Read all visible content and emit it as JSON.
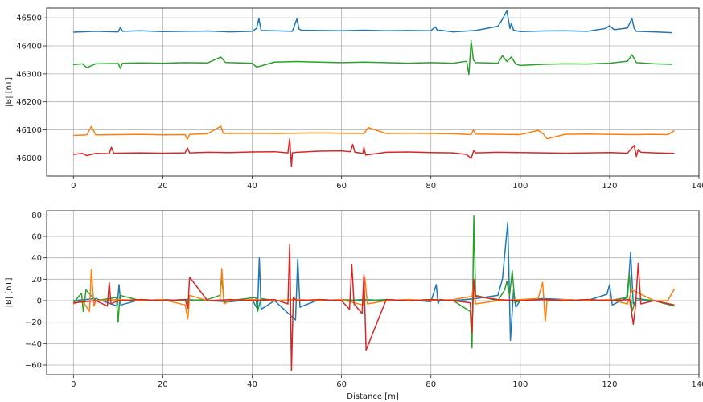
{
  "chart_data": [
    {
      "type": "line",
      "title": "",
      "xlabel": "",
      "ylabel": "|B| [nT]",
      "xlim": [
        -6,
        140
      ],
      "ylim": [
        45935,
        46535
      ],
      "xticks": [
        0,
        20,
        40,
        60,
        80,
        100,
        120,
        140
      ],
      "yticks": [
        46000,
        46100,
        46200,
        46300,
        46400,
        46500
      ],
      "xtick_labels": [
        "0",
        "20",
        "40",
        "60",
        "80",
        "100",
        "120",
        "140"
      ],
      "ytick_labels": [
        "46000",
        "46100",
        "46200",
        "46300",
        "46400",
        "46500"
      ],
      "grid": true,
      "series": [
        {
          "color": "#1f77b4",
          "base": 46450,
          "x": [
            0,
            5,
            10,
            10.5,
            11,
            15,
            20,
            25,
            30,
            35,
            40,
            41,
            41.5,
            42,
            45,
            49,
            50,
            50.5,
            51,
            55,
            60,
            65,
            70,
            75,
            80,
            81,
            81.5,
            82,
            85,
            90,
            95,
            96,
            97,
            97.7,
            98,
            98.5,
            100,
            105,
            110,
            115,
            119,
            120,
            121,
            124,
            125,
            125.5,
            126,
            130,
            134
          ],
          "y": [
            46449,
            46452,
            46450,
            46466,
            46452,
            46454,
            46451,
            46452,
            46453,
            46450,
            46452,
            46463,
            46498,
            46455,
            46454,
            46452,
            46496,
            46460,
            46456,
            46455,
            46454,
            46456,
            46454,
            46455,
            46454,
            46468,
            46454,
            46456,
            46450,
            46455,
            46470,
            46495,
            46525,
            46462,
            46480,
            46456,
            46451,
            46453,
            46454,
            46452,
            46462,
            46472,
            46458,
            46464,
            46498,
            46462,
            46452,
            46450,
            46447
          ]
        },
        {
          "color": "#2ca02c",
          "base": 46335,
          "x": [
            0,
            2,
            3,
            5,
            10,
            10.5,
            11,
            15,
            20,
            25,
            30,
            33,
            34,
            35,
            40,
            41,
            45,
            50,
            55,
            60,
            65,
            70,
            75,
            80,
            85,
            88,
            88.5,
            89,
            89.5,
            90,
            95,
            96,
            97,
            98,
            99,
            100,
            105,
            110,
            115,
            120,
            124,
            125,
            126,
            130,
            134
          ],
          "y": [
            46333,
            46336,
            46322,
            46336,
            46337,
            46320,
            46338,
            46339,
            46338,
            46340,
            46339,
            46360,
            46341,
            46340,
            46338,
            46324,
            46342,
            46344,
            46342,
            46340,
            46342,
            46340,
            46338,
            46340,
            46338,
            46345,
            46298,
            46418,
            46350,
            46340,
            46338,
            46365,
            46344,
            46360,
            46335,
            46330,
            46334,
            46336,
            46335,
            46338,
            46345,
            46368,
            46340,
            46336,
            46334
          ]
        },
        {
          "color": "#ff7f0e",
          "base": 46082,
          "x": [
            0,
            3,
            4,
            5,
            10,
            15,
            20,
            25,
            25.5,
            26,
            30,
            33,
            33.5,
            34,
            40,
            45,
            50,
            55,
            60,
            65,
            66,
            70,
            75,
            80,
            85,
            89,
            89.5,
            90,
            95,
            100,
            104,
            105,
            106,
            110,
            115,
            120,
            125,
            130,
            133,
            134.5
          ],
          "y": [
            46080,
            46082,
            46112,
            46082,
            46083,
            46084,
            46082,
            46083,
            46066,
            46084,
            46086,
            46113,
            46088,
            46087,
            46088,
            46087,
            46088,
            46089,
            46088,
            46087,
            46108,
            46087,
            46088,
            46087,
            46086,
            46083,
            46100,
            46085,
            46084,
            46083,
            46098,
            46088,
            46068,
            46084,
            46085,
            46084,
            46083,
            46084,
            46083,
            46097
          ]
        },
        {
          "color": "#d62728",
          "base": 46018,
          "x": [
            0,
            2,
            3,
            5,
            8,
            8.5,
            9,
            15,
            20,
            25,
            25.5,
            26,
            30,
            35,
            40,
            45,
            48,
            48.4,
            48.8,
            49,
            50,
            55,
            60,
            62,
            62.5,
            63,
            64.8,
            65,
            65.4,
            70,
            75,
            80,
            85,
            88,
            89,
            89.6,
            90,
            95,
            100,
            105,
            110,
            115,
            120,
            124,
            125.5,
            126,
            126.4,
            127,
            130,
            134.5
          ],
          "y": [
            46012,
            46016,
            46008,
            46016,
            46015,
            46038,
            46017,
            46018,
            46017,
            46018,
            46036,
            46018,
            46020,
            46019,
            46021,
            46022,
            46018,
            46068,
            45968,
            46018,
            46020,
            46024,
            46025,
            46022,
            46048,
            46020,
            46016,
            46038,
            46010,
            46020,
            46021,
            46019,
            46018,
            46012,
            45998,
            46026,
            46018,
            46020,
            46019,
            46018,
            46017,
            46018,
            46019,
            46017,
            46045,
            46005,
            46030,
            46020,
            46018,
            46016
          ]
        }
      ]
    },
    {
      "type": "line",
      "title": "",
      "xlabel": "Distance [m]",
      "ylabel": "|B| [nT]",
      "xlim": [
        -6,
        140
      ],
      "ylim": [
        -69,
        84
      ],
      "xticks": [
        0,
        20,
        40,
        60,
        80,
        100,
        120,
        140
      ],
      "yticks": [
        -60,
        -40,
        -20,
        0,
        20,
        40,
        60,
        80
      ],
      "xtick_labels": [
        "0",
        "20",
        "40",
        "60",
        "80",
        "100",
        "120",
        "140"
      ],
      "ytick_labels": [
        "−60",
        "−40",
        "−20",
        "0",
        "20",
        "40",
        "60",
        "80"
      ],
      "grid": true,
      "series": [
        {
          "color": "#1f77b4",
          "x": [
            0,
            5,
            9.8,
            10.2,
            10.6,
            15,
            20,
            25,
            30,
            35,
            40,
            41.2,
            41.6,
            42,
            45,
            49.7,
            50.2,
            50.7,
            55,
            60,
            65,
            70,
            75,
            80,
            81.2,
            81.6,
            82,
            85,
            90,
            95,
            96,
            97.2,
            97.8,
            98.5,
            99,
            100,
            105,
            110,
            115,
            119.4,
            120,
            120.6,
            124,
            124.7,
            125.3,
            126,
            130,
            134.5
          ],
          "y": [
            0,
            2,
            -5,
            15,
            -4,
            1,
            0,
            1,
            0,
            -1,
            1,
            -8,
            40,
            -8,
            0,
            -18,
            39,
            -6,
            1,
            0,
            1,
            0,
            1,
            -1,
            15,
            -3,
            1,
            0,
            2,
            5,
            20,
            73,
            -37,
            10,
            -6,
            0,
            2,
            1,
            0,
            6,
            15,
            -4,
            3,
            45,
            -3,
            0,
            0,
            -5
          ]
        },
        {
          "color": "#2ca02c",
          "x": [
            0,
            1.8,
            2.2,
            2.8,
            5,
            9.6,
            10,
            10.4,
            15,
            20,
            25,
            30,
            32.8,
            33.2,
            33.7,
            35,
            40.8,
            41.2,
            42,
            45,
            50,
            55,
            60,
            65,
            70,
            75,
            80,
            85,
            88.8,
            89.2,
            89.6,
            90,
            95,
            96.5,
            97,
            97.6,
            98.2,
            98.8,
            100,
            105,
            110,
            115,
            120,
            123.8,
            124.4,
            125,
            126,
            130,
            134.5
          ],
          "y": [
            -2,
            7,
            -10,
            10,
            0,
            3,
            -20,
            5,
            0,
            1,
            0,
            1,
            5,
            22,
            -2,
            0,
            3,
            -10,
            2,
            0,
            1,
            0,
            1,
            0,
            1,
            0,
            1,
            0,
            -10,
            -44,
            79,
            5,
            0,
            10,
            18,
            5,
            28,
            -2,
            0,
            1,
            0,
            1,
            0,
            3,
            25,
            -10,
            2,
            0,
            -5
          ]
        },
        {
          "color": "#ff7f0e",
          "x": [
            0,
            2,
            3.6,
            4,
            4.6,
            5,
            10,
            15,
            20,
            25,
            25.6,
            26,
            30,
            32.8,
            33.2,
            33.7,
            35,
            40,
            45,
            50,
            55,
            60,
            64.8,
            65.2,
            65.8,
            70,
            75,
            80,
            85,
            89.2,
            89.6,
            90,
            95,
            100,
            104,
            105,
            105.6,
            106,
            110,
            115,
            120,
            124,
            125,
            130,
            133,
            134.5
          ],
          "y": [
            -3,
            0,
            -10,
            29,
            -5,
            0,
            1,
            0,
            1,
            -4,
            -17,
            5,
            0,
            0,
            30,
            -3,
            0,
            1,
            0,
            1,
            0,
            1,
            -4,
            22,
            -3,
            0,
            1,
            0,
            1,
            4,
            16,
            -3,
            0,
            1,
            2,
            17,
            -19,
            0,
            1,
            0,
            1,
            -3,
            10,
            0,
            0,
            11
          ]
        },
        {
          "color": "#d62728",
          "x": [
            0,
            5,
            7.6,
            8,
            8.4,
            10,
            15,
            20,
            25,
            25.6,
            26,
            30,
            35,
            40,
            45,
            48,
            48.4,
            48.8,
            49.2,
            50,
            55,
            60,
            61.8,
            62.3,
            62.8,
            64.6,
            65,
            65.5,
            70,
            75,
            80,
            85,
            88.8,
            89.2,
            89.6,
            90,
            95,
            100,
            105,
            110,
            115,
            120,
            124.5,
            125.3,
            125.8,
            126.4,
            127,
            130,
            134.5
          ],
          "y": [
            -2,
            0,
            -5,
            17,
            -3,
            0,
            1,
            0,
            1,
            -7,
            22,
            0,
            1,
            0,
            1,
            -3,
            52,
            -65,
            3,
            0,
            1,
            0,
            -8,
            34,
            -3,
            -12,
            24,
            -46,
            1,
            0,
            1,
            0,
            -2,
            -30,
            20,
            4,
            1,
            0,
            1,
            0,
            1,
            0,
            1,
            -22,
            -5,
            35,
            -3,
            0,
            -4
          ]
        }
      ]
    }
  ]
}
